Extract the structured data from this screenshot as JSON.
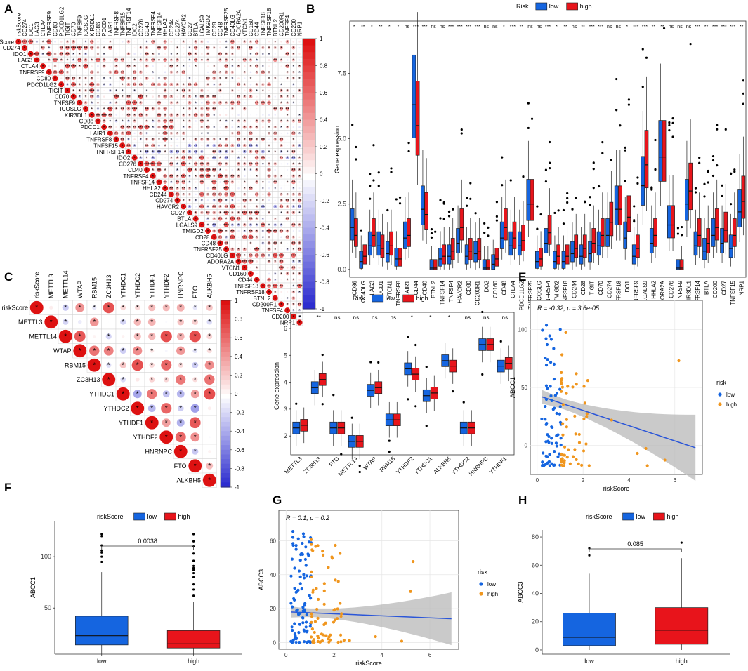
{
  "chart_data": [
    {
      "panel": "A",
      "type": "heatmap",
      "title": "",
      "labels": [
        "riskScore",
        "CD274",
        "IDO1",
        "LAG3",
        "CTLA4",
        "TNFRSF9",
        "CD80",
        "PDCD1LG2",
        "TIGIT",
        "CD70",
        "TNFSF9",
        "ICOSLG",
        "KIR3DL1",
        "CD86",
        "PDCD1",
        "LAIR1",
        "TNFRSF8",
        "TNFSF15",
        "TNFRSF14",
        "IDO2",
        "CD276",
        "CD40",
        "TNFRSF4",
        "TNFSF14",
        "HHLA2",
        "CD244",
        "CD274",
        "HAVCR2",
        "CD27",
        "BTLA",
        "LGALS9",
        "TMIGD2",
        "CD28",
        "CD48",
        "TNFRSF25",
        "CD40LG",
        "ADORA2A",
        "VTCN1",
        "CD160",
        "CD44",
        "TNFSF18",
        "TNFRSF18",
        "BTNL2",
        "CD200R1",
        "TNFSF4",
        "CD200",
        "NRP1"
      ],
      "colorbar": {
        "ticks": [
          "1",
          "0.8",
          "0.6",
          "0.4",
          "0.2",
          "0",
          "-0.2",
          "-0.4",
          "-0.6",
          "-0.8",
          "-1"
        ],
        "low": "#2222cc",
        "mid": "#ffffff",
        "high": "#dd1111"
      }
    },
    {
      "panel": "B",
      "type": "box",
      "legend_title": "Risk",
      "groups": [
        "low",
        "high"
      ],
      "ylabel": "Gene expression",
      "yticks": [
        "0.0",
        "2.5",
        "5.0",
        "7.5"
      ],
      "ylim": [
        -0.3,
        9.5
      ],
      "categories": [
        "CD86",
        "CD40LG",
        "LAG3",
        "PDCD1",
        "VTCN1",
        "TNFRSF8",
        "LAIR1",
        "CD44",
        "CD40",
        "BTNL2",
        "TNFSF14",
        "TNFSF4",
        "HAVCR2",
        "CD80",
        "CD200R1",
        "IDO2",
        "CD160",
        "CD48",
        "CTLA4",
        "PDCD1LG2",
        "TNFRSF25",
        "ICOSLG",
        "TNFRSF4",
        "TMIGD2",
        "TNFSF18",
        "CD244",
        "CD28",
        "TIGIT",
        "CD70",
        "CD274",
        "TNFRSF18",
        "IDO1",
        "TNFRSF9",
        "LGALS9",
        "HHLA2",
        "ADORA2A",
        "CD276",
        "TNFSF9",
        "KIR3DL1",
        "TNFRSF14",
        "BTLA",
        "CD200",
        "CD27",
        "TNFSF15",
        "NRP1"
      ],
      "significance": [
        "*",
        "**",
        "*",
        "**",
        "*",
        "*",
        "ns",
        "***",
        "***",
        "ns",
        "ns",
        "***",
        "***",
        "***",
        "***",
        "ns",
        "ns",
        "*",
        "***",
        "**",
        "ns",
        "ns",
        "***",
        "*",
        "**",
        "ns",
        "**",
        "***",
        "***",
        "ns",
        "ns",
        "*",
        "***",
        "***",
        "**",
        "**",
        "ns",
        "ns",
        "ns",
        "***",
        "**",
        "***",
        "***",
        "***",
        "**"
      ],
      "median_low": [
        1.6,
        0.3,
        0.9,
        0.9,
        0.6,
        0.4,
        1.2,
        6.3,
        2.3,
        0.05,
        0.4,
        0.5,
        1.0,
        0.5,
        0.6,
        0.05,
        0.2,
        1.2,
        0.9,
        0.9,
        2.5,
        0.3,
        1.0,
        0.3,
        0.3,
        0.6,
        0.5,
        0.6,
        0.9,
        1.3,
        2.3,
        1.2,
        0.5,
        3.2,
        1.0,
        4.3,
        1.7,
        0.05,
        2.5,
        0.9,
        0.7,
        1.3,
        1.0,
        0.8,
        2.2
      ],
      "median_high": [
        1.3,
        0.5,
        1.3,
        0.8,
        0.9,
        0.4,
        1.3,
        5.5,
        2.1,
        0.05,
        0.5,
        0.7,
        1.6,
        0.7,
        0.7,
        0.05,
        0.4,
        1.6,
        1.2,
        1.1,
        2.5,
        0.4,
        1.4,
        0.5,
        0.5,
        0.8,
        0.8,
        1.0,
        1.3,
        1.8,
        2.3,
        2.0,
        0.8,
        4.0,
        1.3,
        4.3,
        1.7,
        0.05,
        3.0,
        1.3,
        1.0,
        1.6,
        1.5,
        1.3,
        2.6
      ]
    },
    {
      "panel": "C",
      "type": "heatmap",
      "labels": [
        "riskScore",
        "METTL3",
        "METTL14",
        "WTAP",
        "RBM15",
        "ZC3H13",
        "YTHDC1",
        "YTHDC2",
        "YTHDF1",
        "YTHDF2",
        "HNRNPC",
        "FTO",
        "ALKBH5"
      ],
      "colorbar": {
        "ticks": [
          "1",
          "0.8",
          "0.6",
          "0.4",
          "0.2",
          "0",
          "-0.2",
          "-0.4",
          "-0.6",
          "-0.8",
          "-1"
        ]
      }
    },
    {
      "panel": "D",
      "type": "box",
      "legend_title": "Risk",
      "groups": [
        "low",
        "high"
      ],
      "ylabel": "Gene expression",
      "yticks": [
        "2",
        "3",
        "4",
        "5",
        "6"
      ],
      "ylim": [
        1.3,
        6.6
      ],
      "categories": [
        "METTL3",
        "ZC3H13",
        "FTO",
        "METTL14",
        "WTAP",
        "RBM15",
        "YTHDF2",
        "YTHDC1",
        "ALKBH5",
        "YTHDC2",
        "HNRNPC",
        "YTHDF1"
      ],
      "significance": [
        "*",
        "**",
        "ns",
        "ns",
        "ns",
        "ns",
        "*",
        "*",
        "*",
        "ns",
        "ns",
        "ns"
      ],
      "median_low": [
        2.3,
        3.8,
        2.3,
        1.8,
        3.7,
        2.6,
        4.5,
        3.5,
        4.8,
        2.3,
        5.4,
        4.6
      ],
      "median_high": [
        2.4,
        4.1,
        2.3,
        1.8,
        3.8,
        2.6,
        4.3,
        3.6,
        4.6,
        2.3,
        5.4,
        4.7
      ]
    },
    {
      "panel": "E",
      "type": "scatter",
      "xlabel": "riskScore",
      "ylabel": "ABCC1",
      "annotation": "R = -0.32, p = 3.6e-05",
      "xticks": [
        "0",
        "2",
        "4",
        "6"
      ],
      "yticks": [
        "0",
        "50",
        "100"
      ],
      "xlim": [
        -0.3,
        7.2
      ],
      "ylim": [
        -25,
        125
      ],
      "legend_title": "risk",
      "groups": [
        "low",
        "high"
      ],
      "fit": {
        "x0": 0.2,
        "y0": 42,
        "x1": 6.9,
        "y1": -2
      }
    },
    {
      "panel": "F",
      "type": "box",
      "legend_title": "riskScore",
      "groups": [
        "low",
        "high"
      ],
      "categories": [
        "low",
        "high"
      ],
      "xlabel": "",
      "ylabel": "ABCC1",
      "yticks": [
        "50",
        "100"
      ],
      "ylim": [
        5,
        135
      ],
      "p_value": "0.0038",
      "stats": [
        {
          "q1": 14,
          "median": 23,
          "q3": 42,
          "whisker_low": 3,
          "whisker_high": 85,
          "outliers": [
            95,
            100,
            104,
            106,
            111,
            120,
            122
          ]
        },
        {
          "q1": 11,
          "median": 15,
          "q3": 28,
          "whisker_low": 3,
          "whisker_high": 56,
          "outliers": [
            62,
            68,
            73,
            80,
            84,
            87,
            89,
            91,
            96,
            103,
            110,
            115,
            122
          ]
        }
      ]
    },
    {
      "panel": "G",
      "type": "scatter",
      "xlabel": "riskScore",
      "ylabel": "ABCC3",
      "annotation": "R = 0.1, p = 0.2",
      "xticks": [
        "0",
        "2",
        "4",
        "6"
      ],
      "yticks": [
        "0",
        "20",
        "40",
        "60"
      ],
      "xlim": [
        -0.3,
        7.2
      ],
      "ylim": [
        -4,
        78
      ],
      "legend_title": "risk",
      "groups": [
        "low",
        "high"
      ],
      "fit": {
        "x0": 0.2,
        "y0": 18,
        "x1": 6.9,
        "y1": 14
      }
    },
    {
      "panel": "H",
      "type": "box",
      "legend_title": "riskScore",
      "groups": [
        "low",
        "high"
      ],
      "categories": [
        "low",
        "high"
      ],
      "ylabel": "ABCC3",
      "yticks": [
        "0",
        "20",
        "40",
        "60",
        "80"
      ],
      "ylim": [
        -3,
        85
      ],
      "p_value": "0.085",
      "stats": [
        {
          "q1": 3,
          "median": 9,
          "q3": 26,
          "whisker_low": 0,
          "whisker_high": 54,
          "outliers": [
            67,
            72
          ]
        },
        {
          "q1": 4,
          "median": 14,
          "q3": 30,
          "whisker_low": 0,
          "whisker_high": 65,
          "outliers": [
            76
          ]
        }
      ]
    }
  ],
  "panel_letters": [
    "A",
    "B",
    "C",
    "D",
    "E",
    "F",
    "G",
    "H"
  ],
  "colors": {
    "low": "#1565e0",
    "high": "#e8141b",
    "scatter_low": "#1565e0",
    "scatter_high": "#f0961e",
    "fit": "#2a55d8",
    "band": "#b8b8b8"
  }
}
